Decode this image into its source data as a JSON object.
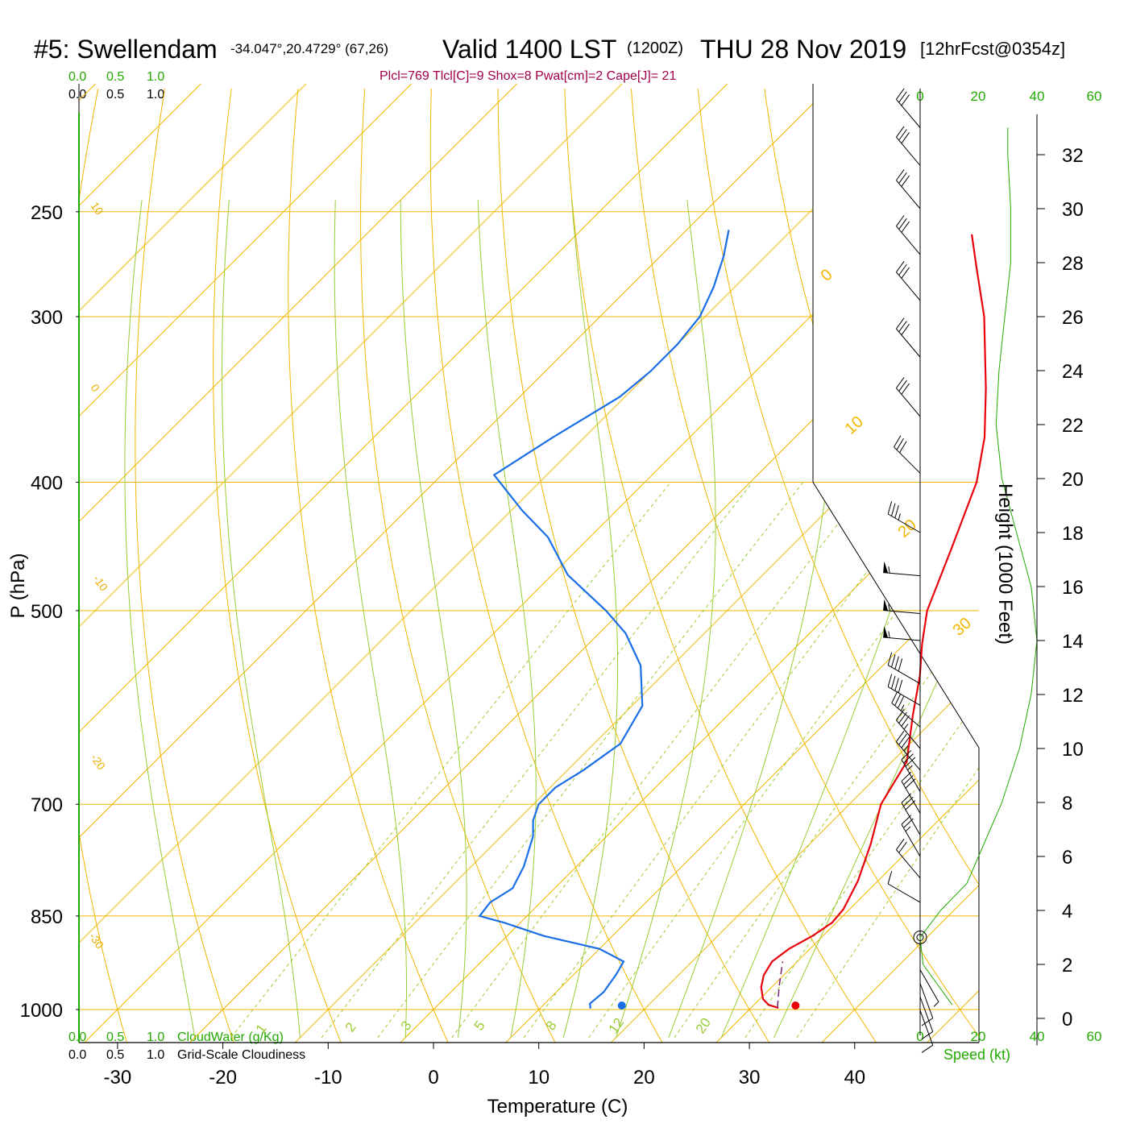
{
  "header": {
    "station": "#5: Swellendam",
    "coords": "-34.047°,20.4729° (67,26)",
    "valid": "Valid 1400 LST",
    "zulu": "(1200Z)",
    "date": "THU 28 Nov 2019",
    "forecast": "[12hrFcst@0354z]",
    "indices": "Plcl=769 Tlcl[C]=9 Shox=8 Pwat[cm]=2 Cape[J]= 21"
  },
  "scales": {
    "top_green": [
      "0.0",
      "0.5",
      "1.0"
    ],
    "top_black": [
      "0.0",
      "0.5",
      "1.0"
    ],
    "bottom_green": [
      "0.0",
      "0.5",
      "1.0"
    ],
    "bottom_black": [
      "0.0",
      "0.5",
      "1.0"
    ],
    "cloudwater_label": "CloudWater (g/Kg)",
    "cloudiness_label": "Grid-Scale Cloudiness",
    "speed_label": "Speed (kt)",
    "speed_ticks": [
      "0",
      "20",
      "40",
      "60"
    ]
  },
  "colors": {
    "isobar": "#f2b600",
    "isotherm": "#f2b600",
    "dry_adiabat": "#f2b600",
    "moist_adiabat": "#99cc33",
    "mixing_ratio": "#99cc33",
    "temperature": "#e8000b",
    "dewpoint": "#1a6ee8",
    "parcel": "#7a1f6a",
    "wind_speed": "#22aa00",
    "cloud_axis": "#22aa00"
  },
  "chart_data": {
    "type": "skew-t",
    "xlabel": "Temperature (C)",
    "ylabel": "P (hPa)",
    "right_label": "Height (1000 Feet)",
    "x_ticks": [
      -30,
      -20,
      -10,
      0,
      10,
      20,
      30,
      40
    ],
    "p_ticks": [
      250,
      300,
      400,
      500,
      700,
      850,
      1000
    ],
    "height_ticks": [
      0,
      2,
      4,
      6,
      8,
      10,
      12,
      14,
      16,
      18,
      20,
      22,
      24,
      26,
      28,
      30,
      32
    ],
    "isotherm_labels": [
      "10",
      "0",
      "-10",
      "-20",
      "-30"
    ],
    "isotherm_labels_right": [
      "0",
      "10",
      "20",
      "30"
    ],
    "mixing_ratio_labels": [
      "1",
      "2",
      "3",
      "5",
      "8",
      "12",
      "20"
    ],
    "temperature": [
      {
        "p": 997,
        "t": 32.6
      },
      {
        "p": 992,
        "t": 31.4
      },
      {
        "p": 982,
        "t": 30.3
      },
      {
        "p": 962,
        "t": 29.0
      },
      {
        "p": 942,
        "t": 28.1
      },
      {
        "p": 920,
        "t": 27.6
      },
      {
        "p": 900,
        "t": 28.0
      },
      {
        "p": 880,
        "t": 29.0
      },
      {
        "p": 860,
        "t": 29.6
      },
      {
        "p": 840,
        "t": 29.4
      },
      {
        "p": 800,
        "t": 28.1
      },
      {
        "p": 750,
        "t": 25.8
      },
      {
        "p": 700,
        "t": 23.0
      },
      {
        "p": 650,
        "t": 21.4
      },
      {
        "p": 600,
        "t": 17.6
      },
      {
        "p": 560,
        "t": 14.5
      },
      {
        "p": 530,
        "t": 11.7
      },
      {
        "p": 500,
        "t": 9.0
      },
      {
        "p": 450,
        "t": 5.5
      },
      {
        "p": 400,
        "t": 1.5
      },
      {
        "p": 370,
        "t": -2.0
      },
      {
        "p": 340,
        "t": -6.5
      },
      {
        "p": 300,
        "t": -13.5
      },
      {
        "p": 275,
        "t": -19.0
      },
      {
        "p": 260,
        "t": -22.5
      }
    ],
    "dewpoint": [
      {
        "p": 998,
        "t": 14.8
      },
      {
        "p": 990,
        "t": 14.3
      },
      {
        "p": 970,
        "t": 14.5
      },
      {
        "p": 940,
        "t": 14.0
      },
      {
        "p": 920,
        "t": 13.5
      },
      {
        "p": 900,
        "t": 10.0
      },
      {
        "p": 880,
        "t": 3.5
      },
      {
        "p": 860,
        "t": -1.5
      },
      {
        "p": 850,
        "t": -4.5
      },
      {
        "p": 830,
        "t": -4.8
      },
      {
        "p": 810,
        "t": -4.0
      },
      {
        "p": 780,
        "t": -5.0
      },
      {
        "p": 740,
        "t": -7.0
      },
      {
        "p": 720,
        "t": -8.5
      },
      {
        "p": 700,
        "t": -9.5
      },
      {
        "p": 680,
        "t": -9.5
      },
      {
        "p": 660,
        "t": -8.5
      },
      {
        "p": 630,
        "t": -7.5
      },
      {
        "p": 590,
        "t": -9.0
      },
      {
        "p": 550,
        "t": -13.0
      },
      {
        "p": 520,
        "t": -17.5
      },
      {
        "p": 500,
        "t": -21.5
      },
      {
        "p": 470,
        "t": -28.5
      },
      {
        "p": 440,
        "t": -34.0
      },
      {
        "p": 420,
        "t": -39.0
      },
      {
        "p": 395,
        "t": -45.0
      },
      {
        "p": 370,
        "t": -43.0
      },
      {
        "p": 345,
        "t": -40.5
      },
      {
        "p": 330,
        "t": -40.0
      },
      {
        "p": 315,
        "t": -40.0
      },
      {
        "p": 300,
        "t": -40.5
      },
      {
        "p": 285,
        "t": -42.0
      },
      {
        "p": 270,
        "t": -44.0
      },
      {
        "p": 258,
        "t": -46.0
      }
    ],
    "parcel": [
      {
        "p": 997,
        "t": 32.5
      },
      {
        "p": 960,
        "t": 30.6
      },
      {
        "p": 920,
        "t": 28.6
      }
    ],
    "surface_temperature": 34,
    "surface_dewpoint": 17.5,
    "wind_speed_profile": [
      {
        "h": 0.5,
        "spd": 11
      },
      {
        "h": 2,
        "spd": 1
      },
      {
        "h": 3,
        "spd": 0
      },
      {
        "h": 4,
        "spd": 7
      },
      {
        "h": 5,
        "spd": 16
      },
      {
        "h": 6,
        "spd": 20
      },
      {
        "h": 8,
        "spd": 28
      },
      {
        "h": 10,
        "spd": 34
      },
      {
        "h": 12,
        "spd": 38
      },
      {
        "h": 14,
        "spd": 40
      },
      {
        "h": 16,
        "spd": 38
      },
      {
        "h": 18,
        "spd": 33
      },
      {
        "h": 20,
        "spd": 28
      },
      {
        "h": 22,
        "spd": 26
      },
      {
        "h": 24,
        "spd": 27
      },
      {
        "h": 26,
        "spd": 29
      },
      {
        "h": 28,
        "spd": 31
      },
      {
        "h": 30,
        "spd": 31
      },
      {
        "h": 32,
        "spd": 30
      },
      {
        "h": 33,
        "spd": 30
      }
    ],
    "wind_barbs": [
      {
        "h": 0.3,
        "spd": 10,
        "dir": 160
      },
      {
        "h": 0.8,
        "spd": 10,
        "dir": 160
      },
      {
        "h": 1.3,
        "spd": 10,
        "dir": 160
      },
      {
        "h": 1.8,
        "spd": 5,
        "dir": 150
      },
      {
        "h": 3,
        "spd": 0,
        "dir": 0
      },
      {
        "h": 4.3,
        "spd": 10,
        "dir": 300
      },
      {
        "h": 5.2,
        "spd": 20,
        "dir": 320
      },
      {
        "h": 6,
        "spd": 25,
        "dir": 330
      },
      {
        "h": 6.8,
        "spd": 30,
        "dir": 330
      },
      {
        "h": 7.6,
        "spd": 30,
        "dir": 330
      },
      {
        "h": 8.4,
        "spd": 35,
        "dir": 330
      },
      {
        "h": 9.2,
        "spd": 35,
        "dir": 320
      },
      {
        "h": 10,
        "spd": 35,
        "dir": 320
      },
      {
        "h": 10.8,
        "spd": 35,
        "dir": 310
      },
      {
        "h": 11.6,
        "spd": 40,
        "dir": 300
      },
      {
        "h": 12.4,
        "spd": 40,
        "dir": 300
      },
      {
        "h": 14,
        "spd": 55,
        "dir": 275
      },
      {
        "h": 15,
        "spd": 55,
        "dir": 275
      },
      {
        "h": 16.4,
        "spd": 55,
        "dir": 275
      },
      {
        "h": 18,
        "spd": 35,
        "dir": 300
      },
      {
        "h": 20.2,
        "spd": 30,
        "dir": 315
      },
      {
        "h": 22.3,
        "spd": 30,
        "dir": 320
      },
      {
        "h": 24.5,
        "spd": 30,
        "dir": 320
      },
      {
        "h": 26.6,
        "spd": 30,
        "dir": 320
      },
      {
        "h": 28.3,
        "spd": 30,
        "dir": 320
      },
      {
        "h": 30,
        "spd": 30,
        "dir": 320
      },
      {
        "h": 31.6,
        "spd": 30,
        "dir": 320
      },
      {
        "h": 33,
        "spd": 30,
        "dir": 320
      }
    ]
  }
}
